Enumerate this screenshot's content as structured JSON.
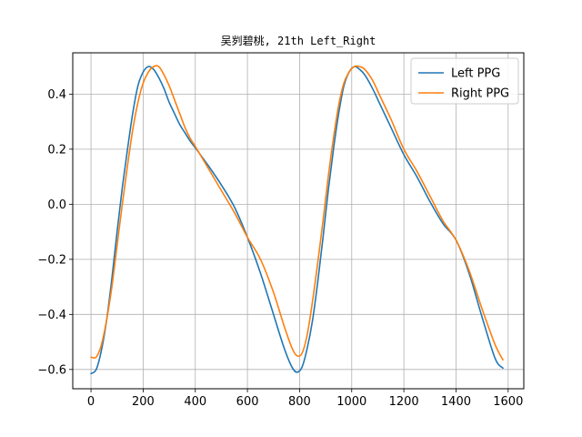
{
  "chart_data": {
    "type": "line",
    "title": "吴刿碧桃, 21th Left_Right",
    "xlabel": "",
    "ylabel": "",
    "xlim": [
      -70,
      1660
    ],
    "ylim": [
      -0.67,
      0.55
    ],
    "xticks": [
      0,
      200,
      400,
      600,
      800,
      1000,
      1200,
      1400,
      1600
    ],
    "xtick_labels": [
      "0",
      "200",
      "400",
      "600",
      "800",
      "1000",
      "1200",
      "1400",
      "1600"
    ],
    "yticks": [
      -0.6,
      -0.4,
      -0.2,
      0.0,
      0.2,
      0.4
    ],
    "ytick_labels": [
      "−0.6",
      "−0.4",
      "−0.2",
      "0.0",
      "0.2",
      "0.4"
    ],
    "grid": true,
    "legend_position": "top-right",
    "series": [
      {
        "name": "Left PPG",
        "color": "#1f77b4",
        "x": [
          0,
          20,
          40,
          60,
          80,
          100,
          120,
          140,
          160,
          180,
          200,
          220,
          240,
          260,
          280,
          300,
          320,
          340,
          360,
          380,
          400,
          450,
          500,
          550,
          600,
          650,
          700,
          740,
          770,
          790,
          810,
          830,
          850,
          870,
          890,
          910,
          930,
          950,
          970,
          990,
          1010,
          1030,
          1050,
          1080,
          1110,
          1150,
          1200,
          1250,
          1300,
          1350,
          1400,
          1450,
          1500,
          1550,
          1580
        ],
        "y": [
          -0.615,
          -0.6,
          -0.53,
          -0.42,
          -0.27,
          -0.1,
          0.06,
          0.2,
          0.33,
          0.43,
          0.48,
          0.5,
          0.49,
          0.46,
          0.42,
          0.37,
          0.33,
          0.29,
          0.26,
          0.23,
          0.205,
          0.14,
          0.07,
          -0.01,
          -0.12,
          -0.25,
          -0.4,
          -0.52,
          -0.59,
          -0.61,
          -0.59,
          -0.52,
          -0.42,
          -0.28,
          -0.12,
          0.05,
          0.2,
          0.33,
          0.43,
          0.48,
          0.5,
          0.49,
          0.47,
          0.42,
          0.36,
          0.28,
          0.18,
          0.1,
          0.01,
          -0.07,
          -0.13,
          -0.25,
          -0.41,
          -0.56,
          -0.595
        ]
      },
      {
        "name": "Right PPG",
        "color": "#ff7f0e",
        "x": [
          0,
          20,
          40,
          60,
          80,
          100,
          120,
          140,
          160,
          180,
          200,
          220,
          240,
          260,
          280,
          300,
          320,
          340,
          360,
          380,
          400,
          450,
          500,
          550,
          600,
          650,
          700,
          740,
          770,
          790,
          810,
          830,
          850,
          870,
          890,
          910,
          930,
          950,
          970,
          990,
          1010,
          1030,
          1050,
          1080,
          1110,
          1150,
          1200,
          1250,
          1300,
          1350,
          1400,
          1450,
          1500,
          1550,
          1580
        ],
        "y": [
          -0.555,
          -0.555,
          -0.51,
          -0.42,
          -0.3,
          -0.15,
          0.0,
          0.14,
          0.27,
          0.37,
          0.44,
          0.48,
          0.5,
          0.5,
          0.47,
          0.43,
          0.38,
          0.33,
          0.28,
          0.24,
          0.21,
          0.13,
          0.05,
          -0.03,
          -0.12,
          -0.2,
          -0.32,
          -0.44,
          -0.52,
          -0.55,
          -0.54,
          -0.47,
          -0.35,
          -0.21,
          -0.06,
          0.1,
          0.24,
          0.36,
          0.44,
          0.48,
          0.5,
          0.5,
          0.49,
          0.45,
          0.39,
          0.31,
          0.2,
          0.12,
          0.03,
          -0.06,
          -0.13,
          -0.24,
          -0.38,
          -0.51,
          -0.565
        ]
      }
    ]
  }
}
